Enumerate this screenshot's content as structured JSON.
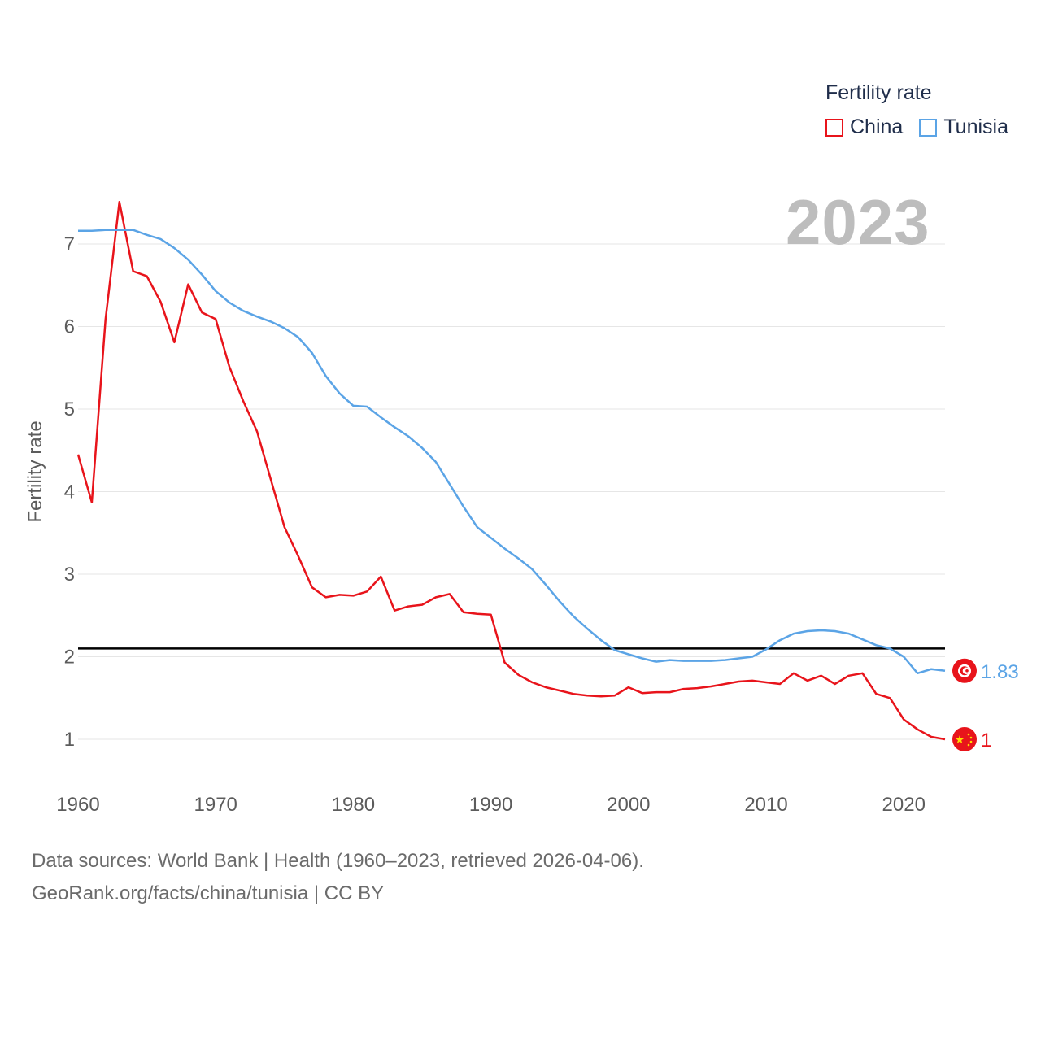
{
  "legend": {
    "title": "Fertility rate",
    "items": [
      {
        "label": "China",
        "color": "#e8141b"
      },
      {
        "label": "Tunisia",
        "color": "#5ba4e6"
      }
    ]
  },
  "current_year": "2023",
  "source": {
    "line1": "Data sources: World Bank | Health (1960–2023, retrieved 2026-04-06).",
    "line2": "GeoRank.org/facts/china/tunisia | CC BY"
  },
  "chart_data": {
    "type": "line",
    "title": "Fertility rate",
    "xlabel": "",
    "ylabel": "Fertility rate",
    "xlim": [
      1960,
      2023
    ],
    "ylim": [
      0.5,
      7.6
    ],
    "x_ticks": [
      1960,
      1970,
      1980,
      1990,
      2000,
      2010,
      2020
    ],
    "y_ticks": [
      1,
      2,
      3,
      4,
      5,
      6,
      7
    ],
    "grid": true,
    "legend_position": "top-right",
    "reference_line": {
      "y": 2.1,
      "color": "#000000"
    },
    "x": [
      1960,
      1961,
      1962,
      1963,
      1964,
      1965,
      1966,
      1967,
      1968,
      1969,
      1970,
      1971,
      1972,
      1973,
      1974,
      1975,
      1976,
      1977,
      1978,
      1979,
      1980,
      1981,
      1982,
      1983,
      1984,
      1985,
      1986,
      1987,
      1988,
      1989,
      1990,
      1991,
      1992,
      1993,
      1994,
      1995,
      1996,
      1997,
      1998,
      1999,
      2000,
      2001,
      2002,
      2003,
      2004,
      2005,
      2006,
      2007,
      2008,
      2009,
      2010,
      2011,
      2012,
      2013,
      2014,
      2015,
      2016,
      2017,
      2018,
      2019,
      2020,
      2021,
      2022,
      2023
    ],
    "series": [
      {
        "name": "China",
        "color": "#e8141b",
        "end_label": "1",
        "values": [
          4.45,
          3.87,
          6.09,
          7.51,
          6.67,
          6.61,
          6.3,
          5.81,
          6.51,
          6.17,
          6.09,
          5.51,
          5.1,
          4.73,
          4.15,
          3.57,
          3.22,
          2.84,
          2.72,
          2.75,
          2.74,
          2.79,
          2.97,
          2.56,
          2.61,
          2.63,
          2.72,
          2.76,
          2.54,
          2.52,
          2.51,
          1.93,
          1.78,
          1.69,
          1.63,
          1.59,
          1.55,
          1.53,
          1.52,
          1.53,
          1.63,
          1.56,
          1.57,
          1.57,
          1.61,
          1.62,
          1.64,
          1.67,
          1.7,
          1.71,
          1.69,
          1.67,
          1.8,
          1.71,
          1.77,
          1.67,
          1.77,
          1.8,
          1.55,
          1.5,
          1.24,
          1.12,
          1.03,
          1.0
        ]
      },
      {
        "name": "Tunisia",
        "color": "#5ba4e6",
        "end_label": "1.83",
        "values": [
          7.16,
          7.16,
          7.17,
          7.17,
          7.17,
          7.11,
          7.06,
          6.95,
          6.81,
          6.63,
          6.43,
          6.29,
          6.19,
          6.12,
          6.06,
          5.98,
          5.87,
          5.68,
          5.4,
          5.19,
          5.04,
          5.03,
          4.9,
          4.78,
          4.67,
          4.53,
          4.36,
          4.09,
          3.82,
          3.57,
          3.44,
          3.31,
          3.19,
          3.06,
          2.87,
          2.67,
          2.49,
          2.34,
          2.2,
          2.08,
          2.03,
          1.98,
          1.94,
          1.96,
          1.95,
          1.95,
          1.95,
          1.96,
          1.98,
          2.0,
          2.09,
          2.2,
          2.28,
          2.31,
          2.32,
          2.31,
          2.28,
          2.21,
          2.14,
          2.1,
          2.0,
          1.8,
          1.85,
          1.83
        ]
      }
    ]
  }
}
